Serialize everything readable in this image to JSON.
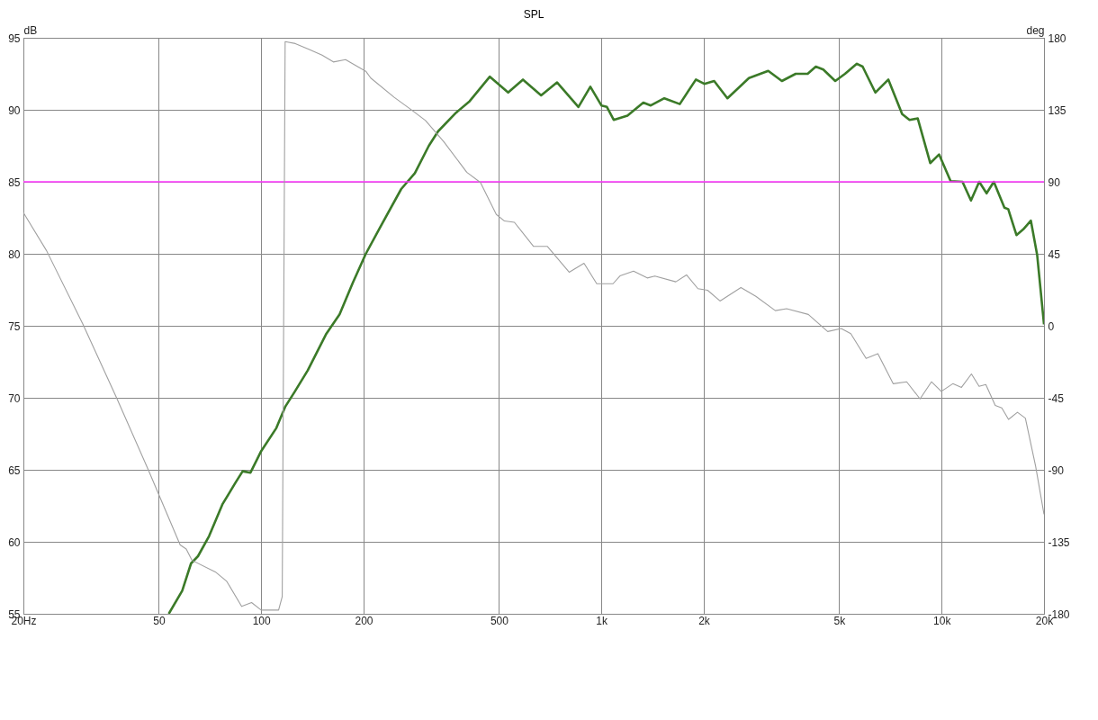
{
  "chart_data": {
    "type": "line",
    "title": "SPL",
    "ylabel": "dB",
    "y2label": "deg",
    "log": "x",
    "grid": true,
    "xlim": [
      20,
      20000
    ],
    "xticks": [
      {
        "value": 20,
        "label": "20Hz"
      },
      50,
      100,
      200,
      500,
      {
        "value": 1000,
        "label": "1k"
      },
      {
        "value": 2000,
        "label": "2k"
      },
      {
        "value": 5000,
        "label": "5k"
      },
      {
        "value": 10000,
        "label": "10k"
      },
      {
        "value": 20000,
        "label": "20k"
      }
    ],
    "ylim": [
      55,
      95
    ],
    "yticks": [
      55,
      60,
      65,
      70,
      75,
      80,
      85,
      90,
      95
    ],
    "y2lim": [
      -180,
      180
    ],
    "y2ticks": [
      -180,
      -135,
      -90,
      -45,
      0,
      45,
      90,
      135,
      180
    ],
    "ref_lines": [
      {
        "axis": "y",
        "value": 85,
        "color": "#ff33ff"
      }
    ],
    "series": [
      {
        "color": "#3b7a28",
        "axis": "y",
        "x": [
          53.5,
          58.6,
          62.2,
          65.2,
          70.3,
          76.9,
          84,
          88.2,
          93,
          100,
          110.8,
          117.8,
          125.3,
          137,
          155,
          170,
          186,
          203,
          228,
          258,
          283,
          311,
          331,
          374,
          410,
          470,
          532,
          588,
          665,
          741,
          856,
          928,
          1000,
          1038,
          1087,
          1193,
          1328,
          1397,
          1531,
          1700,
          1896,
          2007,
          2145,
          2347,
          2714,
          3093,
          3393,
          3725,
          4040,
          4268,
          4490,
          4869,
          5202,
          5636,
          5860,
          6386,
          6975,
          7657,
          8050,
          8510,
          9260,
          9830,
          10630,
          11520,
          12200,
          12900,
          13560,
          14240,
          15300,
          15700,
          16600,
          17380,
          18300,
          19100,
          20000
        ],
        "values": [
          55,
          56.6,
          58.5,
          59,
          60.4,
          62.6,
          64.1,
          64.9,
          64.8,
          66.3,
          67.9,
          69.4,
          70.4,
          71.9,
          74.4,
          75.8,
          78,
          80,
          82.2,
          84.5,
          85.6,
          87.5,
          88.5,
          89.8,
          90.6,
          92.3,
          91.2,
          92.1,
          91,
          91.9,
          90.2,
          91.6,
          90.3,
          90.2,
          89.3,
          89.6,
          90.5,
          90.3,
          90.8,
          90.4,
          92.1,
          91.8,
          92,
          90.8,
          92.2,
          92.7,
          92,
          92.5,
          92.5,
          93,
          92.8,
          92,
          92.5,
          93.2,
          93,
          91.2,
          92.1,
          89.7,
          89.3,
          89.4,
          86.3,
          86.9,
          85.05,
          85,
          83.7,
          85,
          84.2,
          85,
          83.2,
          83.1,
          81.3,
          81.7,
          82.3,
          79.9,
          75.1
        ]
      },
      {
        "color": "#a0a0a0",
        "axis": "y2",
        "x": [
          20,
          23.4,
          29.9,
          37.5,
          46.6,
          57.8,
          60.2,
          62.6,
          73.3,
          79.2,
          87.6,
          93.7,
          100,
          112.5,
          115.3,
          117.6,
          126,
          138,
          151,
          163,
          177,
          203,
          210,
          246,
          276,
          304,
          344,
          402,
          441,
          491,
          519,
          555,
          632,
          694,
          804,
          889,
          969,
          1082,
          1134,
          1243,
          1364,
          1436,
          1655,
          1779,
          1922,
          2052,
          2232,
          2571,
          2845,
          3245,
          3504,
          4057,
          4626,
          5070,
          5409,
          6000,
          6496,
          7205,
          7896,
          8642,
          9336,
          9980,
          10790,
          11440,
          12240,
          12890,
          13490,
          14380,
          15030,
          15730,
          16710,
          17630,
          18900,
          20000
        ],
        "values": [
          70.7,
          46.9,
          1.1,
          -44.6,
          -90.1,
          -137,
          -139.5,
          -146.6,
          -153.8,
          -159.7,
          -175.4,
          -173,
          -177.7,
          -177.7,
          -169.2,
          177.6,
          176.4,
          172.8,
          169.2,
          164.9,
          166.4,
          159.1,
          154.8,
          142.8,
          135.1,
          128.3,
          115.1,
          96,
          89.6,
          69.6,
          65.5,
          64.7,
          49.6,
          49.6,
          33.5,
          39.1,
          26.3,
          26.3,
          31.2,
          34.2,
          29.9,
          31.1,
          27.5,
          31.8,
          23.2,
          22.2,
          15.5,
          23.9,
          18.4,
          9.5,
          10.7,
          7.1,
          -3.6,
          -1.7,
          -4.9,
          -20.4,
          -17.4,
          -36.2,
          -35,
          -45.7,
          -35,
          -41,
          -36.2,
          -38.5,
          -30.1,
          -37.8,
          -36.7,
          -49.8,
          -51.3,
          -58.5,
          -54.1,
          -57.7,
          -87.8,
          -117.8
        ]
      }
    ]
  }
}
